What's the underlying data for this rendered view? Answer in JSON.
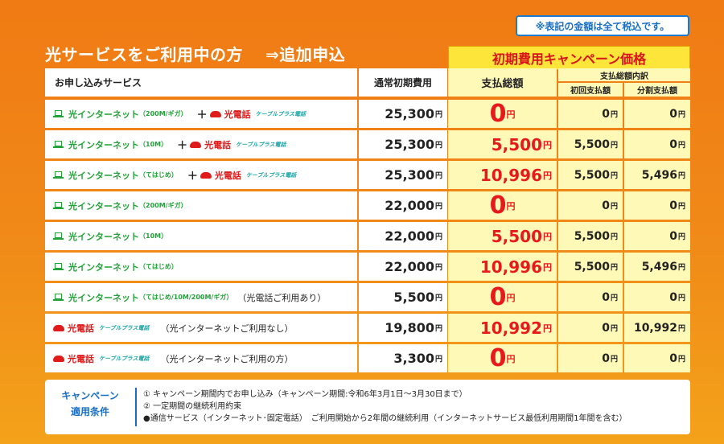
{
  "tax_note": "※表記の金額は全て税込です。",
  "headline": {
    "text": "光サービスをご利用中の方",
    "arrow": "⇒追加申込"
  },
  "campaign_banner": "初期費用キャンペーン価格",
  "headers": {
    "service": "お申し込みサービス",
    "normal_fee": "通常初期費用",
    "total": "支払総額",
    "breakdown": "支払総額内訳",
    "first": "初回支払額",
    "installment": "分割支払額"
  },
  "unit": "円",
  "plus_sign": "＋",
  "rows": [
    {
      "internet": "光インターネット",
      "internet_sub": "（200M/ギガ）",
      "phone": "光電話",
      "phone_sub": "ケーブルプラス電話",
      "note": "",
      "normal": "25,300",
      "total": "0",
      "first": "0",
      "installment": "0"
    },
    {
      "internet": "光インターネット",
      "internet_sub": "（10M）",
      "phone": "光電話",
      "phone_sub": "ケーブルプラス電話",
      "note": "",
      "normal": "25,300",
      "total": "5,500",
      "first": "5,500",
      "installment": "0"
    },
    {
      "internet": "光インターネット",
      "internet_sub": "（てはじめ）",
      "phone": "光電話",
      "phone_sub": "ケーブルプラス電話",
      "note": "",
      "normal": "25,300",
      "total": "10,996",
      "first": "5,500",
      "installment": "5,496"
    },
    {
      "internet": "光インターネット",
      "internet_sub": "（200M/ギガ）",
      "phone": "",
      "phone_sub": "",
      "note": "",
      "normal": "22,000",
      "total": "0",
      "first": "0",
      "installment": "0"
    },
    {
      "internet": "光インターネット",
      "internet_sub": "（10M）",
      "phone": "",
      "phone_sub": "",
      "note": "",
      "normal": "22,000",
      "total": "5,500",
      "first": "5,500",
      "installment": "0"
    },
    {
      "internet": "光インターネット",
      "internet_sub": "（てはじめ）",
      "phone": "",
      "phone_sub": "",
      "note": "",
      "normal": "22,000",
      "total": "10,996",
      "first": "5,500",
      "installment": "5,496"
    },
    {
      "internet": "光インターネット",
      "internet_sub": "（てはじめ/10M/200M/ギガ）",
      "phone": "",
      "phone_sub": "",
      "note": "（光電話ご利用あり）",
      "normal": "5,500",
      "total": "0",
      "first": "0",
      "installment": "0"
    },
    {
      "internet": "",
      "internet_sub": "",
      "phone": "光電話",
      "phone_sub": "ケーブルプラス電話",
      "note": "（光インターネットご利用なし）",
      "normal": "19,800",
      "total": "10,992",
      "first": "0",
      "installment": "10,992"
    },
    {
      "internet": "",
      "internet_sub": "",
      "phone": "光電話",
      "phone_sub": "ケーブルプラス電話",
      "note": "（光インターネットご利用の方）",
      "normal": "3,300",
      "total": "0",
      "first": "0",
      "installment": "0"
    }
  ],
  "footer": {
    "title_line1": "キャンペーン",
    "title_line2": "適用条件",
    "lines": [
      "① キャンペーン期間内でお申し込み（キャンペーン期間:令和6年3月1日～3月30日まで）",
      "② 一定期間の継続利用約束",
      "●通信サービス（インターネット･固定電話）　ご利用開始から2年間の継続利用（インターネットサービス最低利用期間1年間を含む）"
    ]
  },
  "colors": {
    "accent_red": "#e81919",
    "internet_green": "#23a23a",
    "highlight_yellow": "#fff9b8",
    "background_orange": "#f07a14",
    "footer_blue": "#1a6fc4"
  }
}
